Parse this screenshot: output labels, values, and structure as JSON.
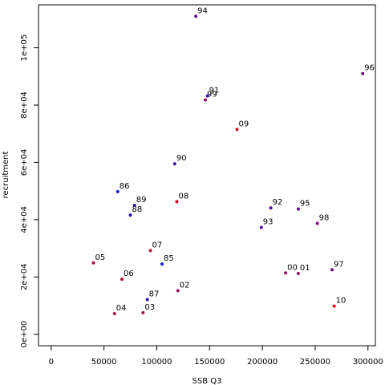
{
  "chart_data": {
    "type": "scatter",
    "title": "",
    "xlabel": "SSB Q3",
    "ylabel": "recruitment",
    "xlim": [
      -12000,
      307000
    ],
    "ylim": [
      -4000,
      115000
    ],
    "grid": false,
    "legend": "none",
    "x_ticks": [
      {
        "value": 0,
        "label": "0"
      },
      {
        "value": 50000,
        "label": "50000"
      },
      {
        "value": 100000,
        "label": "100000"
      },
      {
        "value": 150000,
        "label": "150000"
      },
      {
        "value": 200000,
        "label": "200000"
      },
      {
        "value": 250000,
        "label": "250000"
      },
      {
        "value": 300000,
        "label": "300000"
      }
    ],
    "y_ticks": [
      {
        "value": 0,
        "label": "0e+00"
      },
      {
        "value": 20000,
        "label": "2e+04"
      },
      {
        "value": 40000,
        "label": "4e+04"
      },
      {
        "value": 60000,
        "label": "6e+04"
      },
      {
        "value": 80000,
        "label": "8e+04"
      },
      {
        "value": 100000,
        "label": "1e+05"
      }
    ],
    "points": [
      {
        "label": "85",
        "x": 105000,
        "y": 24500,
        "color": "#1a1acc"
      },
      {
        "label": "86",
        "x": 63000,
        "y": 49800,
        "color": "#1a1acc"
      },
      {
        "label": "87",
        "x": 91000,
        "y": 12100,
        "color": "#2a10c8"
      },
      {
        "label": "88",
        "x": 75000,
        "y": 41600,
        "color": "#2a10c8"
      },
      {
        "label": "89",
        "x": 79000,
        "y": 45000,
        "color": "#3410c0"
      },
      {
        "label": "90",
        "x": 117000,
        "y": 59500,
        "color": "#3a0fb8"
      },
      {
        "label": "91",
        "x": 148000,
        "y": 83200,
        "color": "#440fb0"
      },
      {
        "label": "92",
        "x": 208000,
        "y": 44100,
        "color": "#4a0fa8"
      },
      {
        "label": "93",
        "x": 199000,
        "y": 37300,
        "color": "#520fa0"
      },
      {
        "label": "94",
        "x": 137000,
        "y": 111000,
        "color": "#5a0f98"
      },
      {
        "label": "95",
        "x": 234000,
        "y": 43700,
        "color": "#620f90"
      },
      {
        "label": "96",
        "x": 295000,
        "y": 91000,
        "color": "#6a0f88"
      },
      {
        "label": "97",
        "x": 266000,
        "y": 22500,
        "color": "#720f80"
      },
      {
        "label": "98",
        "x": 252000,
        "y": 38700,
        "color": "#7a0f78"
      },
      {
        "label": "99",
        "x": 146000,
        "y": 81800,
        "color": "#820f70"
      },
      {
        "label": "00",
        "x": 222000,
        "y": 21400,
        "color": "#8a0f68"
      },
      {
        "label": "01",
        "x": 234000,
        "y": 21200,
        "color": "#920f60"
      },
      {
        "label": "02",
        "x": 120000,
        "y": 15200,
        "color": "#9a0f58"
      },
      {
        "label": "03",
        "x": 87000,
        "y": 7500,
        "color": "#a20f50"
      },
      {
        "label": "04",
        "x": 60000,
        "y": 7200,
        "color": "#aa0f48"
      },
      {
        "label": "05",
        "x": 40000,
        "y": 24900,
        "color": "#b20f40"
      },
      {
        "label": "06",
        "x": 67000,
        "y": 19200,
        "color": "#ba0f38"
      },
      {
        "label": "07",
        "x": 94000,
        "y": 29200,
        "color": "#c20f30"
      },
      {
        "label": "08",
        "x": 119000,
        "y": 46300,
        "color": "#ca0f28"
      },
      {
        "label": "09",
        "x": 176000,
        "y": 71500,
        "color": "#d20f20"
      },
      {
        "label": "10",
        "x": 268000,
        "y": 9800,
        "color": "#e00f10"
      }
    ]
  }
}
